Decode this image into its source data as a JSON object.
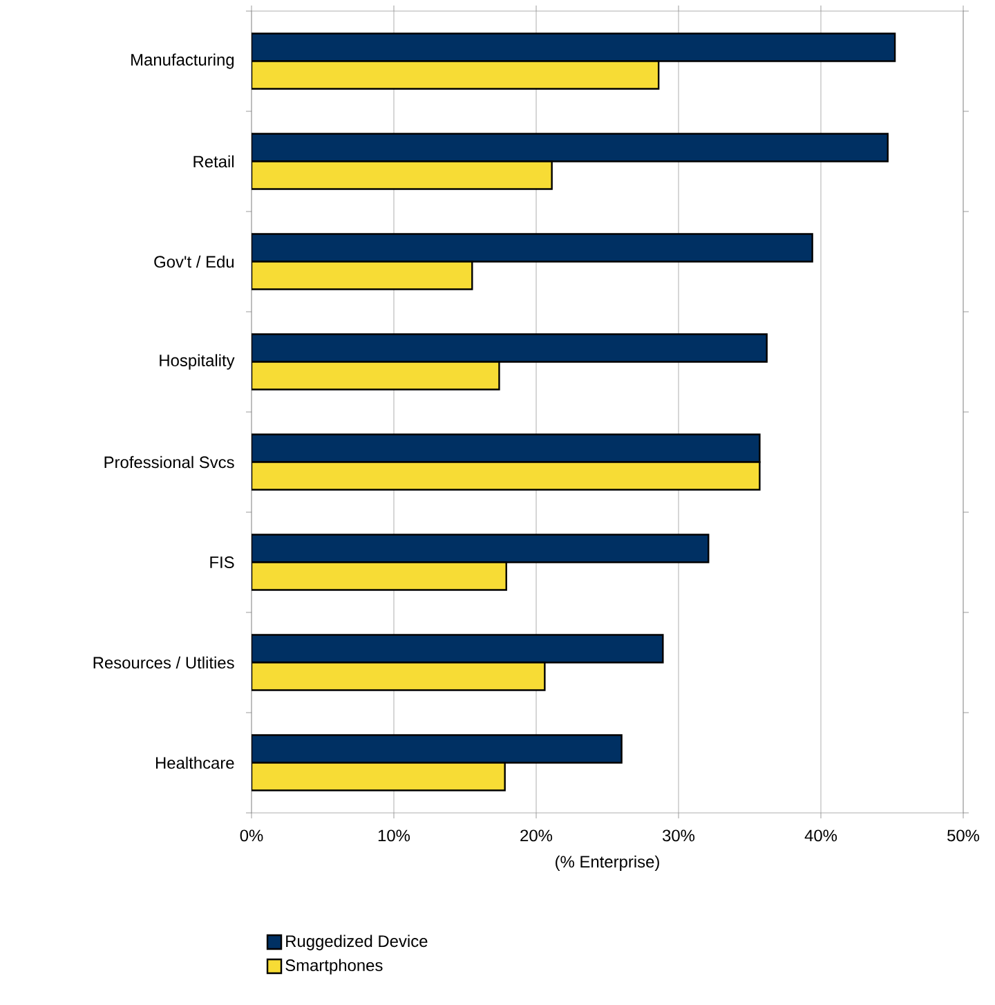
{
  "chart_data": {
    "type": "bar",
    "orientation": "horizontal",
    "xlabel": "(% Enterprise)",
    "categories": [
      "Manufacturing",
      "Retail",
      "Gov't / Edu",
      "Hospitality",
      "Professional Svcs",
      "FIS",
      "Resources / Utlities",
      "Healthcare"
    ],
    "series": [
      {
        "name": "Ruggedized Device",
        "color": "#003063",
        "values": [
          45.2,
          44.7,
          39.4,
          36.2,
          35.7,
          32.1,
          28.9,
          26.0
        ]
      },
      {
        "name": "Smartphones",
        "color": "#f7dc35",
        "values": [
          28.6,
          21.1,
          15.5,
          17.4,
          35.7,
          17.9,
          20.6,
          17.8
        ]
      }
    ],
    "xlim": [
      0,
      50
    ],
    "xticks": [
      {
        "value": 0,
        "label": "0%"
      },
      {
        "value": 10,
        "label": "10%"
      },
      {
        "value": 20,
        "label": "20%"
      },
      {
        "value": 30,
        "label": "30%"
      },
      {
        "value": 40,
        "label": "40%"
      },
      {
        "value": 50,
        "label": "50%"
      }
    ],
    "grid": "x",
    "legend": "bottom left"
  }
}
